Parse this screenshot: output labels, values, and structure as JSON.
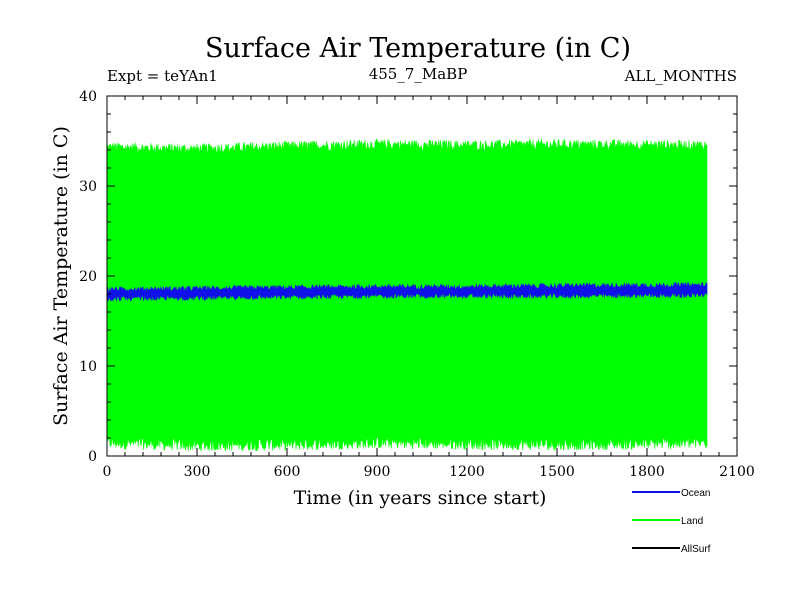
{
  "header": {
    "title": "Surface Air Temperature (in C)",
    "expt": "Expt = teYAn1",
    "period": "455_7_MaBP",
    "months": "ALL_MONTHS"
  },
  "colors": {
    "ocean": "#1010e8",
    "land": "#00ff00",
    "allsurf": "#000000",
    "axis": "#000000"
  },
  "chart_data": {
    "type": "line",
    "title": "Surface Air Temperature (in C)",
    "xlabel": "Time (in years since start)",
    "ylabel": "Surface Air Temperature (in C)",
    "xlim": [
      0,
      2100
    ],
    "ylim": [
      0,
      40
    ],
    "xticks": [
      0,
      300,
      600,
      900,
      1200,
      1500,
      1800,
      2100
    ],
    "xtick_labels": [
      "0",
      "300",
      "600",
      "900",
      "1200",
      "1500",
      "1800",
      "2100"
    ],
    "yticks": [
      0,
      10,
      20,
      30,
      40
    ],
    "ytick_labels": [
      "0",
      "10",
      "20",
      "30",
      "40"
    ],
    "x_start": 0,
    "x_end": 2000,
    "series": [
      {
        "name": "Land",
        "color": "#00ff00",
        "band_min": [
          1.5,
          1.2,
          1.3,
          1.5,
          1.4,
          1.3,
          1.5
        ],
        "band_max": [
          34.3,
          34.1,
          34.4,
          34.6,
          34.5,
          34.6,
          34.5
        ],
        "x": [
          0,
          300,
          600,
          900,
          1200,
          1500,
          2000
        ]
      },
      {
        "name": "Ocean",
        "color": "#1010e8",
        "band_min": [
          17.5,
          17.6,
          17.7,
          17.8,
          17.8,
          17.8,
          17.9
        ],
        "band_max": [
          18.5,
          18.6,
          18.7,
          18.8,
          18.8,
          18.9,
          19.0
        ],
        "x": [
          0,
          300,
          600,
          900,
          1200,
          1500,
          2000
        ]
      },
      {
        "name": "AllSurf",
        "color": "#000000",
        "band_min": [],
        "band_max": [],
        "x": []
      }
    ],
    "legend": [
      {
        "label": "Ocean",
        "color": "#1010e8"
      },
      {
        "label": "Land",
        "color": "#00ff00"
      },
      {
        "label": "AllSurf",
        "color": "#000000"
      }
    ],
    "legend_position": "bottom-right"
  }
}
